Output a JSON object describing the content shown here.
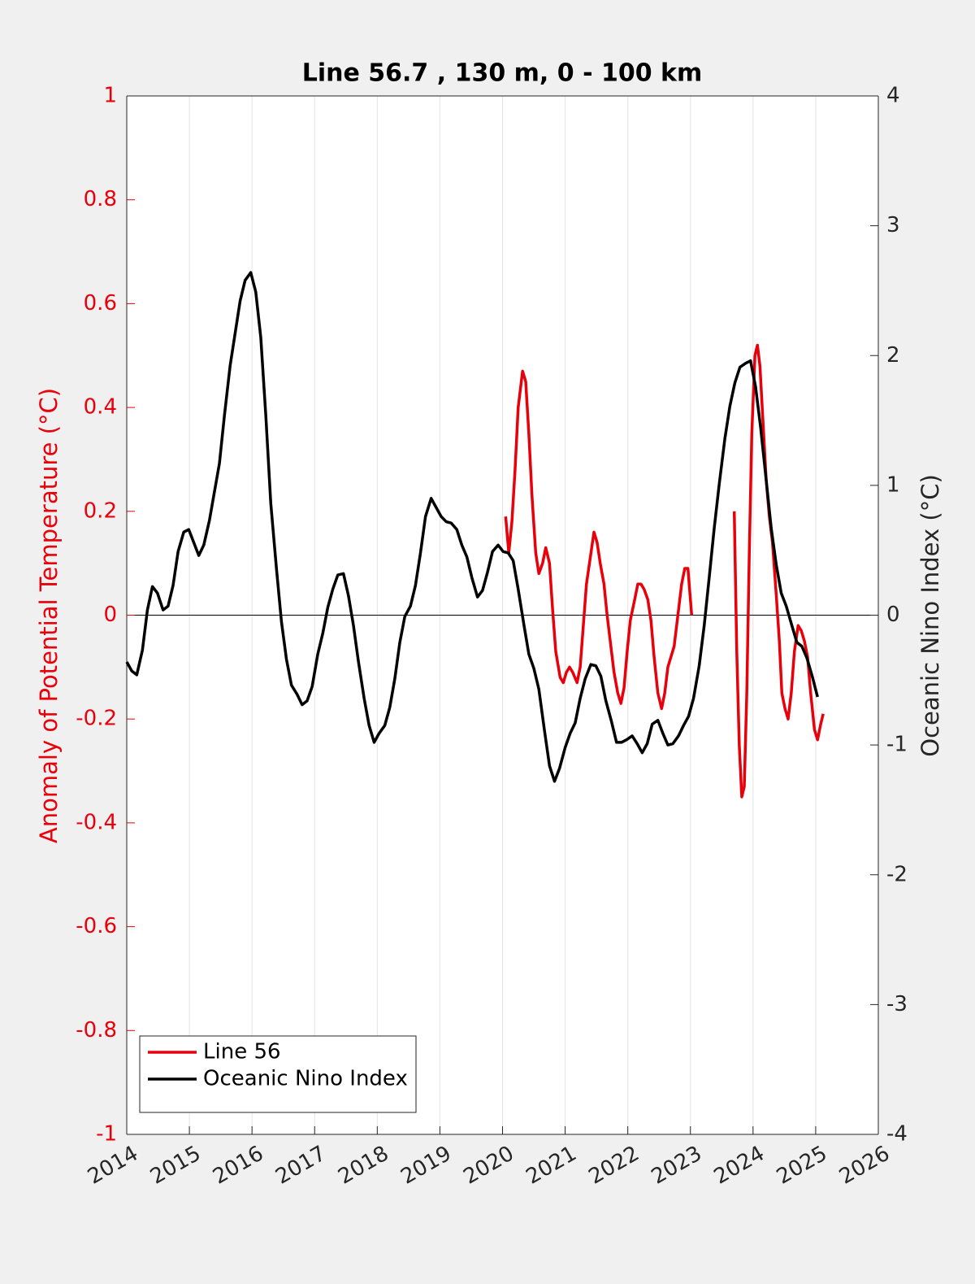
{
  "chart_data": {
    "type": "line",
    "title": "Line 56.7 , 130 m, 0 - 100 km",
    "y_label": "Anomaly of Potential Temperature (°C)",
    "y2_label": "Oceanic Nino Index (°C)",
    "xlim": [
      2014,
      2026
    ],
    "xticks": [
      2014,
      2015,
      2016,
      2017,
      2018,
      2019,
      2020,
      2021,
      2022,
      2023,
      2024,
      2025,
      2026
    ],
    "ylim": [
      -1,
      1
    ],
    "yticks": [
      -1,
      -0.8,
      -0.6,
      -0.4,
      -0.2,
      0,
      0.2,
      0.4,
      0.6,
      0.8,
      1
    ],
    "y2lim": [
      -4,
      4
    ],
    "y2ticks": [
      -4,
      -3,
      -2,
      -1,
      0,
      1,
      2,
      3,
      4
    ],
    "grid": true,
    "legend": "lower left",
    "series": [
      {
        "name": "Line 56",
        "color": "#e8000b",
        "axis": "y",
        "x": [
          2020.05,
          2020.1,
          2020.15,
          2020.2,
          2020.25,
          2020.32,
          2020.37,
          2020.42,
          2020.47,
          2020.53,
          2020.58,
          2020.64,
          2020.69,
          2020.75,
          2020.8,
          2020.85,
          2020.92,
          2020.97,
          2021.02,
          2021.07,
          2021.12,
          2021.19,
          2021.24,
          2021.29,
          2021.34,
          2021.4,
          2021.46,
          2021.51,
          2021.56,
          2021.62,
          2021.67,
          2021.72,
          2021.78,
          2021.84,
          2021.89,
          2021.94,
          2021.99,
          2022.04,
          2022.11,
          2022.16,
          2022.21,
          2022.26,
          2022.32,
          2022.37,
          2022.42,
          2022.48,
          2022.54,
          2022.59,
          2022.64,
          2022.69,
          2022.74,
          2022.8,
          2022.86,
          2022.91,
          2022.96,
          2023.02,
          2023.4,
          2023.7,
          2023.74,
          2023.78,
          2023.82,
          2023.86,
          2023.9,
          2023.94,
          2023.98,
          2024.03,
          2024.07,
          2024.11,
          2024.16,
          2024.21,
          2024.26,
          2024.31,
          2024.37,
          2024.42,
          2024.46,
          2024.51,
          2024.56,
          2024.61,
          2024.66,
          2024.72,
          2024.77,
          2024.82,
          2024.87,
          2024.92,
          2024.98,
          2025.03,
          2025.08,
          2025.12
        ],
        "values": [
          0.19,
          0.12,
          0.18,
          0.28,
          0.4,
          0.47,
          0.45,
          0.35,
          0.23,
          0.12,
          0.08,
          0.1,
          0.13,
          0.1,
          0.01,
          -0.07,
          -0.12,
          -0.13,
          -0.11,
          -0.1,
          -0.11,
          -0.13,
          -0.1,
          -0.02,
          0.06,
          0.11,
          0.16,
          0.14,
          0.1,
          0.06,
          0.0,
          -0.05,
          -0.11,
          -0.15,
          -0.17,
          -0.14,
          -0.07,
          -0.01,
          0.03,
          0.06,
          0.06,
          0.05,
          0.03,
          -0.01,
          -0.08,
          -0.15,
          -0.18,
          -0.15,
          -0.1,
          -0.08,
          -0.06,
          0.0,
          0.06,
          0.09,
          0.09,
          0.0,
          null,
          0.2,
          -0.07,
          -0.25,
          -0.35,
          -0.33,
          -0.15,
          0.12,
          0.35,
          0.5,
          0.52,
          0.48,
          0.37,
          0.26,
          0.19,
          0.14,
          0.04,
          -0.05,
          -0.15,
          -0.18,
          -0.2,
          -0.15,
          -0.07,
          -0.02,
          -0.03,
          -0.05,
          -0.08,
          -0.15,
          -0.22,
          -0.24,
          -0.21,
          -0.19
        ]
      },
      {
        "name": "Oceanic Nino Index",
        "color": "#000000",
        "axis": "y2",
        "x": [
          2014.0,
          2014.08,
          2014.16,
          2014.25,
          2014.33,
          2014.41,
          2014.49,
          2014.58,
          2014.66,
          2014.74,
          2014.82,
          2014.91,
          2014.99,
          2015.07,
          2015.15,
          2015.23,
          2015.32,
          2015.4,
          2015.48,
          2015.56,
          2015.65,
          2015.73,
          2015.81,
          2015.89,
          2015.98,
          2016.06,
          2016.14,
          2016.22,
          2016.3,
          2016.39,
          2016.47,
          2016.55,
          2016.63,
          2016.72,
          2016.8,
          2016.88,
          2016.96,
          2017.05,
          2017.13,
          2017.21,
          2017.29,
          2017.37,
          2017.46,
          2017.54,
          2017.62,
          2017.7,
          2017.79,
          2017.87,
          2017.95,
          2018.03,
          2018.12,
          2018.2,
          2018.28,
          2018.36,
          2018.44,
          2018.53,
          2018.61,
          2018.69,
          2018.77,
          2018.86,
          2018.94,
          2019.02,
          2019.1,
          2019.18,
          2019.27,
          2019.35,
          2019.43,
          2019.51,
          2019.6,
          2019.68,
          2019.76,
          2019.84,
          2019.93,
          2020.01,
          2020.09,
          2020.17,
          2020.25,
          2020.34,
          2020.42,
          2020.5,
          2020.58,
          2020.67,
          2020.75,
          2020.83,
          2020.91,
          2021.0,
          2021.08,
          2021.16,
          2021.24,
          2021.32,
          2021.41,
          2021.49,
          2021.57,
          2021.65,
          2021.74,
          2021.82,
          2021.9,
          2021.98,
          2022.07,
          2022.15,
          2022.23,
          2022.31,
          2022.39,
          2022.48,
          2022.56,
          2022.64,
          2022.72,
          2022.81,
          2022.89,
          2022.97,
          2023.05,
          2023.14,
          2023.22,
          2023.3,
          2023.38,
          2023.46,
          2023.55,
          2023.63,
          2023.71,
          2023.79,
          2023.88,
          2023.96,
          2024.04,
          2024.12,
          2024.21,
          2024.29,
          2024.37,
          2024.45,
          2024.53,
          2024.62,
          2024.7,
          2024.78,
          2024.86,
          2024.95,
          2025.03
        ],
        "values": [
          -0.36,
          -0.43,
          -0.46,
          -0.27,
          0.04,
          0.22,
          0.17,
          0.04,
          0.07,
          0.23,
          0.49,
          0.64,
          0.66,
          0.56,
          0.46,
          0.54,
          0.73,
          0.95,
          1.17,
          1.54,
          1.92,
          2.17,
          2.42,
          2.58,
          2.64,
          2.49,
          2.14,
          1.54,
          0.86,
          0.36,
          -0.05,
          -0.34,
          -0.54,
          -0.61,
          -0.69,
          -0.66,
          -0.55,
          -0.3,
          -0.14,
          0.06,
          0.2,
          0.31,
          0.32,
          0.15,
          -0.08,
          -0.36,
          -0.64,
          -0.85,
          -0.98,
          -0.91,
          -0.85,
          -0.71,
          -0.49,
          -0.21,
          -0.01,
          0.07,
          0.23,
          0.48,
          0.76,
          0.9,
          0.83,
          0.76,
          0.72,
          0.71,
          0.66,
          0.54,
          0.45,
          0.29,
          0.14,
          0.19,
          0.33,
          0.49,
          0.54,
          0.49,
          0.48,
          0.42,
          0.2,
          -0.07,
          -0.3,
          -0.41,
          -0.57,
          -0.89,
          -1.16,
          -1.28,
          -1.18,
          -1.02,
          -0.91,
          -0.83,
          -0.64,
          -0.49,
          -0.38,
          -0.39,
          -0.47,
          -0.66,
          -0.82,
          -0.98,
          -0.98,
          -0.96,
          -0.93,
          -0.99,
          -1.06,
          -0.99,
          -0.84,
          -0.81,
          -0.91,
          -1.0,
          -0.99,
          -0.93,
          -0.85,
          -0.78,
          -0.64,
          -0.39,
          -0.08,
          0.29,
          0.67,
          1.01,
          1.36,
          1.61,
          1.79,
          1.91,
          1.94,
          1.96,
          1.76,
          1.45,
          1.04,
          0.67,
          0.39,
          0.17,
          0.07,
          -0.08,
          -0.21,
          -0.24,
          -0.33,
          -0.48,
          -0.63
        ]
      }
    ]
  }
}
